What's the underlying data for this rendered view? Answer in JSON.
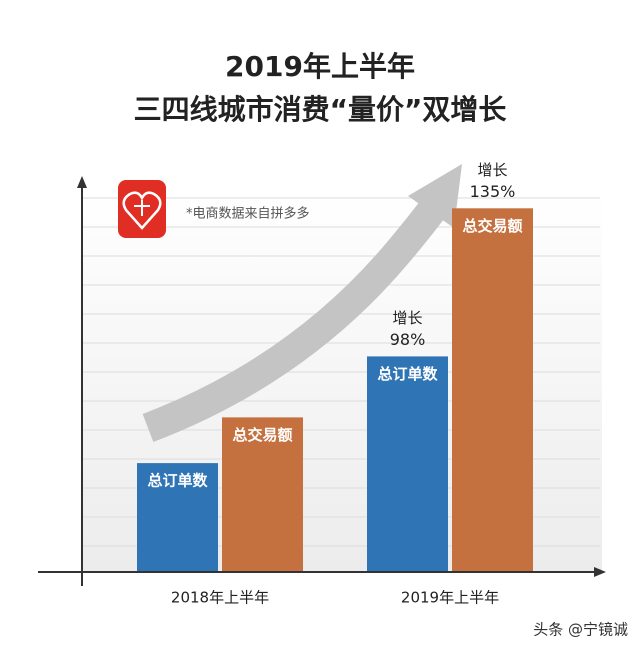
{
  "chart_data": {
    "type": "bar",
    "title": [
      "2019年上半年",
      "三四线城市消费“量价”双增长"
    ],
    "note": "*电商数据来自拼多多",
    "watermark": "头条 @宁镜诚",
    "categories": [
      "2018年上半年",
      "2019年上半年"
    ],
    "series": [
      {
        "name": "总订单数",
        "color": "#2f74b5",
        "values": [
          100,
          198
        ],
        "growth": [
          "增长",
          "98%"
        ]
      },
      {
        "name": "总交易额",
        "color": "#c4703f",
        "values": [
          142,
          334
        ],
        "growth": [
          "增长",
          "135%"
        ]
      }
    ],
    "ylim": [
      0,
      360
    ]
  }
}
